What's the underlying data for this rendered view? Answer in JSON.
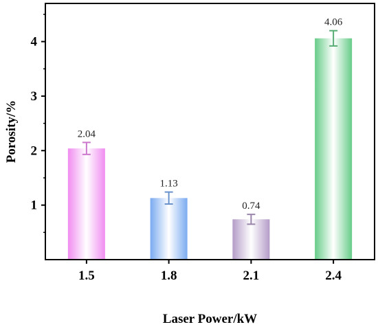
{
  "chart_data": {
    "type": "bar",
    "title": "",
    "xlabel": "Laser Power/kW",
    "ylabel": "Porosity/%",
    "categories": [
      "1.5",
      "1.8",
      "2.1",
      "2.4"
    ],
    "values": [
      2.04,
      1.13,
      0.74,
      4.06
    ],
    "errors": [
      0.11,
      0.11,
      0.09,
      0.14
    ],
    "data_labels": [
      "2.04",
      "1.13",
      "0.74",
      "4.06"
    ],
    "ylim": [
      0,
      4.7
    ],
    "yticks": [
      1,
      2,
      3,
      4
    ],
    "ytick_labels": [
      "1",
      "2",
      "3",
      "4"
    ],
    "grid": false,
    "bar_colors": [
      "#f08cf0",
      "#7aaaf0",
      "#b49cc8",
      "#66cc88"
    ]
  }
}
